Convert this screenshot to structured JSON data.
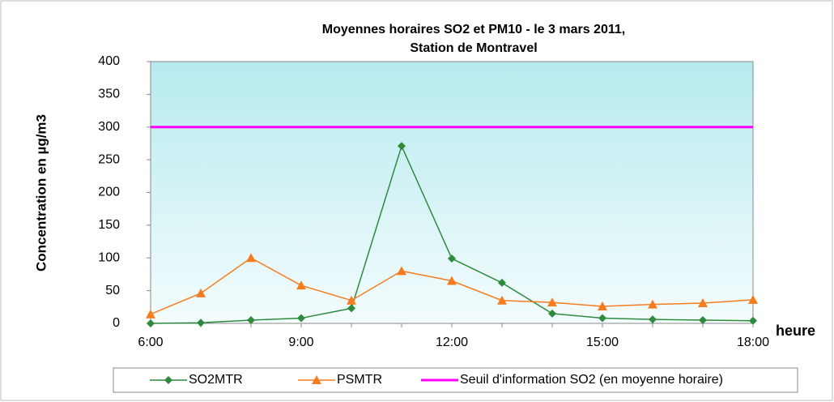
{
  "chart_data": {
    "type": "line",
    "title": "Moyennes horaires SO2 et PM10 -  le 3 mars 2011,",
    "subtitle": "Station de Montravel",
    "y_label": "Concentration en µg/m3",
    "x_label": "heure",
    "categories": [
      "6:00",
      null,
      null,
      "9:00",
      null,
      null,
      "12:00",
      null,
      null,
      "15:00",
      null,
      null,
      "18:00"
    ],
    "series": [
      {
        "name": "SO2MTR",
        "color": "#2e8b3e",
        "marker": "diamond",
        "values": [
          0,
          1,
          5,
          8,
          23,
          271,
          99,
          62,
          15,
          8,
          6,
          5,
          4
        ]
      },
      {
        "name": "PSMTR",
        "color": "#f57c1f",
        "marker": "triangle",
        "values": [
          14,
          46,
          100,
          58,
          35,
          80,
          65,
          35,
          32,
          26,
          29,
          31,
          36
        ]
      },
      {
        "name": "Seuil d'information SO2 (en moyenne horaire)",
        "color": "#ff00ff",
        "marker": "none",
        "values": [
          300,
          300,
          300,
          300,
          300,
          300,
          300,
          300,
          300,
          300,
          300,
          300,
          300
        ]
      }
    ],
    "ylim": [
      0,
      400
    ],
    "yticks": [
      0,
      50,
      100,
      150,
      200,
      250,
      300,
      350,
      400
    ],
    "grid": false,
    "legend": "bottom"
  }
}
